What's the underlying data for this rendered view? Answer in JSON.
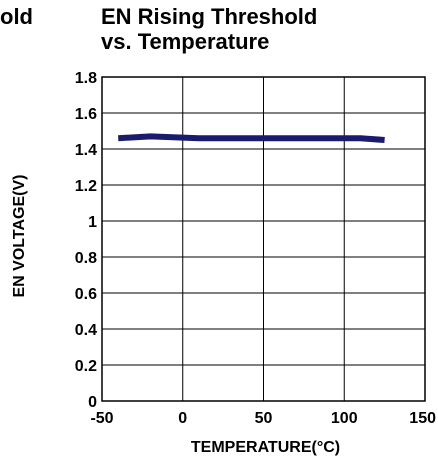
{
  "cut_title": "old",
  "chart_data": {
    "type": "line",
    "title_line1": "EN Rising Threshold",
    "title_line2": "vs. Temperature",
    "xlabel": "TEMPERATURE(°C)",
    "ylabel": "EN VOLTAGE(V)",
    "xlim": [
      -50,
      150
    ],
    "ylim": [
      0,
      1.8
    ],
    "x_ticks": [
      "-50",
      "0",
      "50",
      "100",
      "150"
    ],
    "y_ticks": [
      "0",
      "0.2",
      "0.4",
      "0.6",
      "0.8",
      "1",
      "1.2",
      "1.4",
      "1.6",
      "1.8"
    ],
    "grid": true,
    "series": [
      {
        "color": "#1a1a6e",
        "x": [
          -40,
          -20,
          10,
          50,
          80,
          110,
          125
        ],
        "y": [
          1.46,
          1.47,
          1.46,
          1.46,
          1.46,
          1.46,
          1.45
        ]
      }
    ]
  }
}
